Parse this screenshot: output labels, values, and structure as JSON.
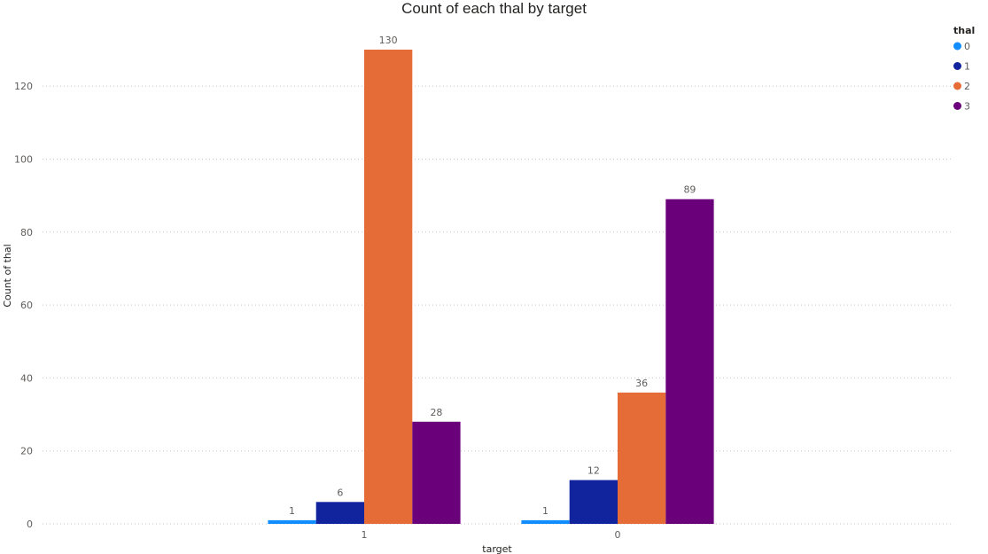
{
  "chart_data": {
    "type": "bar",
    "title": "Count of each thal by target",
    "xlabel": "target",
    "ylabel": "Count of thal",
    "categories": [
      "1",
      "0"
    ],
    "ylim": [
      0,
      130
    ],
    "y_ticks": [
      0,
      20,
      40,
      60,
      80,
      100,
      120
    ],
    "grid": true,
    "legend": {
      "title": "thal",
      "placement": "top-right"
    },
    "series": [
      {
        "name": "0",
        "color": "#118DFF",
        "values": [
          1,
          1
        ]
      },
      {
        "name": "1",
        "color": "#12239E",
        "values": [
          6,
          12
        ]
      },
      {
        "name": "2",
        "color": "#E66C37",
        "values": [
          130,
          36
        ]
      },
      {
        "name": "3",
        "color": "#6B007B",
        "values": [
          28,
          89
        ]
      }
    ]
  }
}
